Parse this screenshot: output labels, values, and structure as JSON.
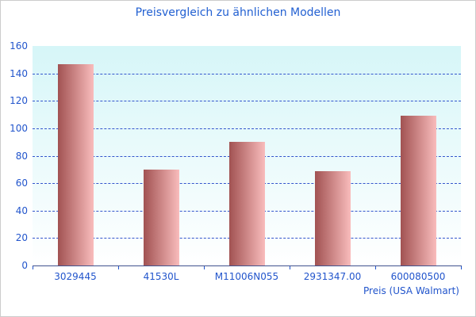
{
  "chart_data": {
    "type": "bar",
    "title": "Preisvergleich zu ähnlichen Modellen",
    "xlabel": "Preis (USA Walmart)",
    "ylabel": "",
    "categories": [
      "3029445",
      "41530L",
      "M11006N055",
      "2931347.00",
      "600080500"
    ],
    "values": [
      147,
      70,
      90,
      69,
      109
    ],
    "ylim": [
      0,
      160
    ],
    "ytick_step": 20,
    "grid": "horizontal-dashed",
    "legend": "none",
    "colors": {
      "title_text": "#2260d2",
      "tick_label_text": "#2255cc",
      "gridline": "#3355cc",
      "axis_line": "#41528e",
      "tick_mark": "#2255cc",
      "bar_gradient_left": "#a15252",
      "bar_gradient_right": "#f9bcbc",
      "plot_bg_top": "#d6f6f8",
      "plot_bg_bottom": "#ffffff",
      "frame_border": "#cccccc"
    }
  }
}
